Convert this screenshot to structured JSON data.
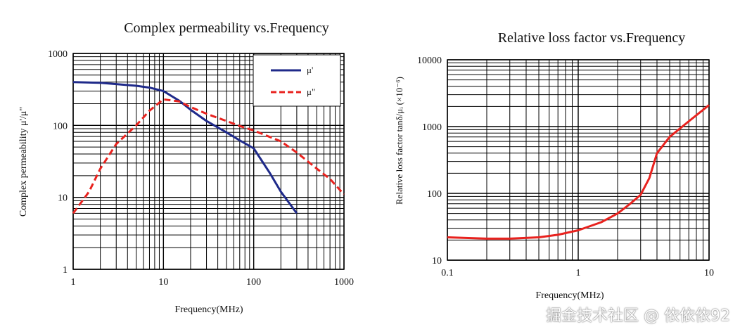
{
  "watermark": "掘金技术社区 @ 依依依92",
  "chart_data": [
    {
      "type": "line",
      "title": "Complex permeability vs.Frequency",
      "xlabel": "Frequency(MHz)",
      "ylabel": "Complex permeability μ'/μ\"",
      "xscale": "log",
      "yscale": "log",
      "xlim": [
        1,
        1000
      ],
      "ylim": [
        1,
        1000
      ],
      "xticks": [
        {
          "v": 1,
          "t": "1"
        },
        {
          "v": 10,
          "t": "10"
        },
        {
          "v": 100,
          "t": "100"
        },
        {
          "v": 1000,
          "t": "1000"
        }
      ],
      "yticks": [
        {
          "v": 1,
          "t": "1"
        },
        {
          "v": 10,
          "t": "10"
        },
        {
          "v": 100,
          "t": "100"
        },
        {
          "v": 1000,
          "t": "1000"
        }
      ],
      "grid": true,
      "legend_position": "top-right",
      "series": [
        {
          "name": "μ'",
          "color": "#1f2a8a",
          "dash": "solid",
          "x": [
            1,
            2,
            3,
            5,
            7,
            10,
            15,
            20,
            30,
            50,
            70,
            100,
            150,
            200,
            300
          ],
          "y": [
            400,
            390,
            375,
            355,
            335,
            300,
            220,
            165,
            115,
            80,
            62,
            48,
            22,
            12,
            6
          ]
        },
        {
          "name": "μ\"",
          "color": "#e8221e",
          "dash": "dashed",
          "x": [
            1,
            1.5,
            2,
            3,
            5,
            7,
            10,
            15,
            20,
            30,
            50,
            70,
            100,
            200,
            300,
            500,
            700,
            1000
          ],
          "y": [
            6,
            12,
            25,
            55,
            100,
            160,
            230,
            215,
            180,
            145,
            115,
            98,
            85,
            60,
            42,
            25,
            18,
            11
          ]
        }
      ]
    },
    {
      "type": "line",
      "title": "Relative loss factor vs.Frequency",
      "xlabel": "Frequency(MHz)",
      "ylabel": "Relative loss factor tanδ/μᵢ (×10⁻⁶)",
      "xscale": "log",
      "yscale": "log",
      "xlim": [
        0.1,
        10
      ],
      "ylim": [
        10,
        10000
      ],
      "xticks": [
        {
          "v": 0.1,
          "t": "0.1"
        },
        {
          "v": 1,
          "t": "1"
        },
        {
          "v": 10,
          "t": "10"
        }
      ],
      "yticks": [
        {
          "v": 10,
          "t": "10"
        },
        {
          "v": 100,
          "t": "100"
        },
        {
          "v": 1000,
          "t": "1000"
        },
        {
          "v": 10000,
          "t": "10000"
        }
      ],
      "grid": true,
      "series": [
        {
          "name": "tanδ/μᵢ",
          "color": "#e8221e",
          "dash": "solid",
          "x": [
            0.1,
            0.2,
            0.3,
            0.5,
            0.7,
            1,
            1.5,
            2,
            2.5,
            3,
            3.5,
            4,
            5,
            7,
            10
          ],
          "y": [
            22,
            21,
            21,
            22,
            24,
            28,
            37,
            50,
            70,
            95,
            170,
            400,
            700,
            1200,
            2100
          ]
        }
      ]
    }
  ]
}
